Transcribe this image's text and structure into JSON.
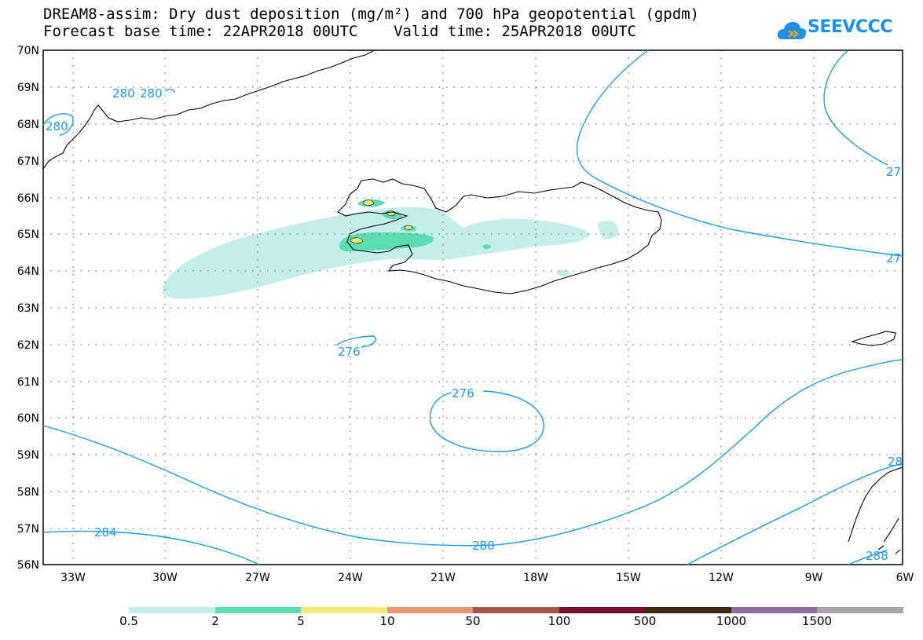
{
  "title": {
    "line1": "DREAM8-assim: Dry dust deposition (mg/m²) and 700 hPa geopotential (gpdm)",
    "line2": "Forecast base time: 22APR2018 00UTC    Valid time: 25APR2018 00UTC"
  },
  "logo": {
    "text": "SEEVCCC",
    "icon": "cloud-icon"
  },
  "map": {
    "lat_labels": [
      "70N",
      "69N",
      "68N",
      "67N",
      "66N",
      "65N",
      "64N",
      "63N",
      "62N",
      "61N",
      "60N",
      "59N",
      "58N",
      "57N",
      "56N"
    ],
    "lon_labels": [
      "33W",
      "30W",
      "27W",
      "24W",
      "21W",
      "18W",
      "15W",
      "12W",
      "9W",
      "6W"
    ],
    "lat_range": [
      56,
      70
    ],
    "lon_range": [
      -34.3,
      -6
    ],
    "grid": true,
    "contour_color": "#1a9cf0",
    "contour_labels": [
      "280",
      "280",
      "280",
      "27",
      "27",
      "276",
      "276",
      "284",
      "280",
      "28",
      "288"
    ]
  },
  "legend": {
    "labels": [
      "0.5",
      "2",
      "5",
      "10",
      "50",
      "100",
      "500",
      "1000",
      "1500"
    ],
    "colors": [
      "#c4efe8",
      "#5cdcb3",
      "#f3e97b",
      "#e99676",
      "#a5554a",
      "#7a0c2c",
      "#3d2a12",
      "#8e6b9e",
      "#a7a7a7"
    ]
  }
}
